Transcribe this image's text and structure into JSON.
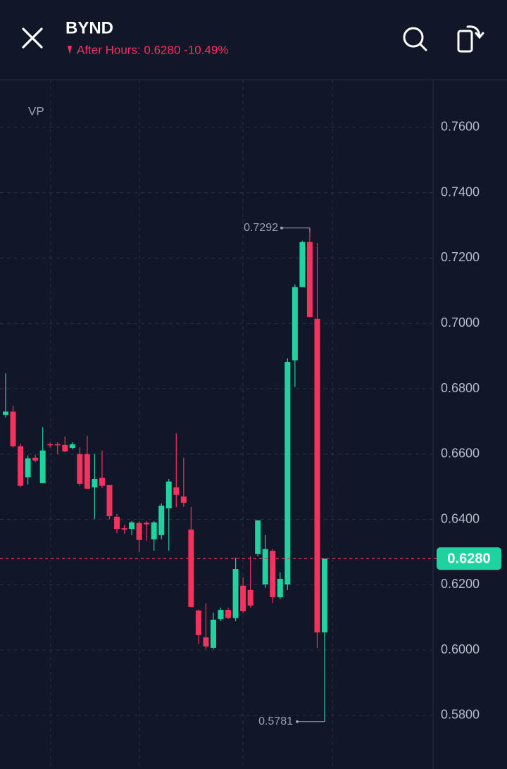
{
  "header": {
    "symbol": "BYND",
    "status": "After Hours: 0.6280 -10.49%"
  },
  "chart_data": {
    "type": "candlestick",
    "indicator": "VP",
    "up_color": "#1fd3a0",
    "down_color": "#f2335d",
    "open": [
      0.672,
      0.673,
      0.6624,
      0.6529,
      0.6589,
      0.6511,
      0.663,
      0.663,
      0.6628,
      0.6619,
      0.66,
      0.66,
      0.6498,
      0.6527,
      0.6505,
      0.6408,
      0.6373,
      0.6371,
      0.6389,
      0.639,
      0.6339,
      0.6352,
      0.6434,
      0.6498,
      0.647,
      0.6369,
      0.6121,
      0.6039,
      0.6007,
      0.6095,
      0.6123,
      0.6098,
      0.6197,
      0.6184,
      0.6294,
      0.6201,
      0.6304,
      0.6162,
      0.6201,
      0.6887,
      0.7111,
      0.7249,
      0.7014,
      0.6054
    ],
    "high": [
      0.6847,
      0.6748,
      0.6632,
      0.6596,
      0.6598,
      0.6682,
      0.6635,
      0.6636,
      0.6654,
      0.6636,
      0.6621,
      0.6656,
      0.66,
      0.6611,
      0.6505,
      0.6417,
      0.6384,
      0.6395,
      0.6395,
      0.6395,
      0.6395,
      0.6449,
      0.6524,
      0.6664,
      0.6589,
      0.6438,
      0.6125,
      0.6143,
      0.6115,
      0.613,
      0.613,
      0.6283,
      0.6223,
      0.6287,
      0.6397,
      0.6352,
      0.6309,
      0.6238,
      0.6893,
      0.7119,
      0.7253,
      0.7292,
      0.7246,
      0.628
    ],
    "low": [
      0.6712,
      0.662,
      0.6498,
      0.6507,
      0.6575,
      0.6511,
      0.662,
      0.66,
      0.6606,
      0.6615,
      0.6503,
      0.6494,
      0.6401,
      0.6496,
      0.6401,
      0.6358,
      0.6356,
      0.6352,
      0.63,
      0.6335,
      0.6304,
      0.6339,
      0.6304,
      0.6438,
      0.6438,
      0.6132,
      0.6018,
      0.6003,
      0.6003,
      0.6089,
      0.6095,
      0.6089,
      0.6113,
      0.613,
      0.6287,
      0.619,
      0.6145,
      0.6156,
      0.6184,
      0.6805,
      0.7111,
      0.702,
      0.6007,
      0.5781
    ],
    "close": [
      0.673,
      0.6624,
      0.6503,
      0.6587,
      0.658,
      0.6611,
      0.6628,
      0.6628,
      0.6608,
      0.663,
      0.6509,
      0.6494,
      0.6524,
      0.6503,
      0.641,
      0.6371,
      0.6369,
      0.6391,
      0.6337,
      0.6385,
      0.6391,
      0.6442,
      0.6516,
      0.6475,
      0.6451,
      0.6132,
      0.6046,
      0.6011,
      0.6093,
      0.6123,
      0.6098,
      0.6248,
      0.6119,
      0.6136,
      0.6397,
      0.6309,
      0.6162,
      0.6218,
      0.6882,
      0.7111,
      0.7249,
      0.702,
      0.6054,
      0.628
    ],
    "ylim": [
      0.5636,
      0.7742
    ],
    "yticks": [
      {
        "value": 0.76,
        "label": "0.7600"
      },
      {
        "value": 0.74,
        "label": "0.7400"
      },
      {
        "value": 0.72,
        "label": "0.7200"
      },
      {
        "value": 0.7,
        "label": "0.7000"
      },
      {
        "value": 0.68,
        "label": "0.6800"
      },
      {
        "value": 0.66,
        "label": "0.6600"
      },
      {
        "value": 0.64,
        "label": "0.6400"
      },
      {
        "value": 0.62,
        "label": "0.6200"
      },
      {
        "value": 0.6,
        "label": "0.6000"
      },
      {
        "value": 0.58,
        "label": "0.5800"
      }
    ],
    "grid": true,
    "high_label": 0.7292,
    "low_label": 0.5781,
    "last_price": {
      "value": 0.628,
      "label": "0.6280"
    }
  }
}
